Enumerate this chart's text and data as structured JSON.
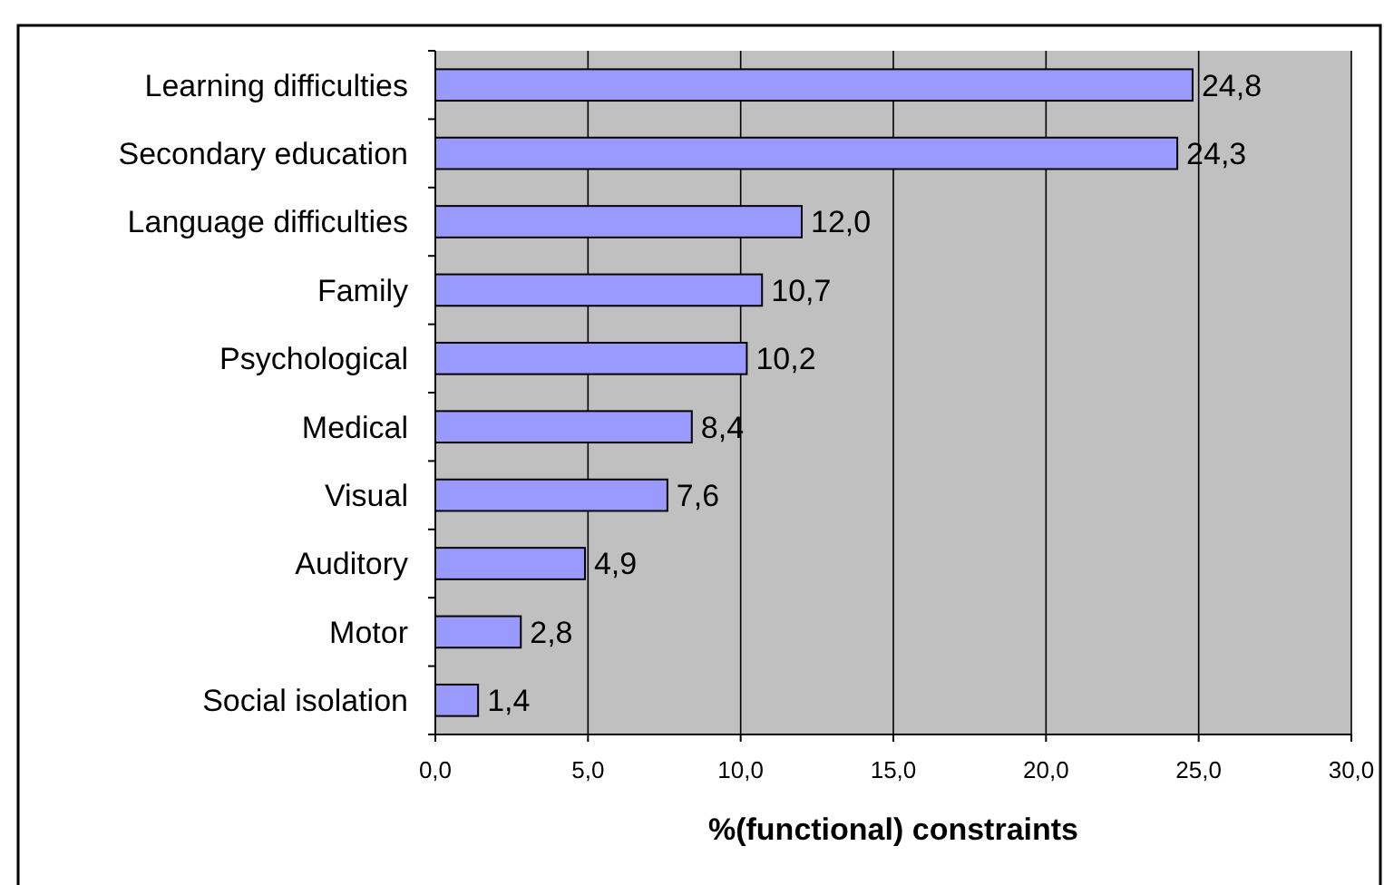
{
  "chart_data": {
    "type": "bar",
    "orientation": "horizontal",
    "xlabel": "%(functional) constraints",
    "categories": [
      "Learning difficulties",
      "Secondary education",
      "Language difficulties",
      "Family",
      "Psychological",
      "Medical",
      "Visual",
      "Auditory",
      "Motor",
      "Social isolation"
    ],
    "values": [
      24.8,
      24.3,
      12.0,
      10.7,
      10.2,
      8.4,
      7.6,
      4.9,
      2.8,
      1.4
    ],
    "value_labels": [
      "24,8",
      "24,3",
      "12,0",
      "10,7",
      "10,2",
      "8,4",
      "7,6",
      "4,9",
      "2,8",
      "1,4"
    ],
    "color": "#9999ff",
    "xlim": [
      0,
      30
    ],
    "xticks": [
      {
        "value": 0,
        "label": "0,0"
      },
      {
        "value": 5,
        "label": "5,0"
      },
      {
        "value": 10,
        "label": "10,0"
      },
      {
        "value": 15,
        "label": "15,0"
      },
      {
        "value": 20,
        "label": "20,0"
      },
      {
        "value": 25,
        "label": "25,0"
      },
      {
        "value": 30,
        "label": "30,0"
      }
    ],
    "grid": "x"
  }
}
